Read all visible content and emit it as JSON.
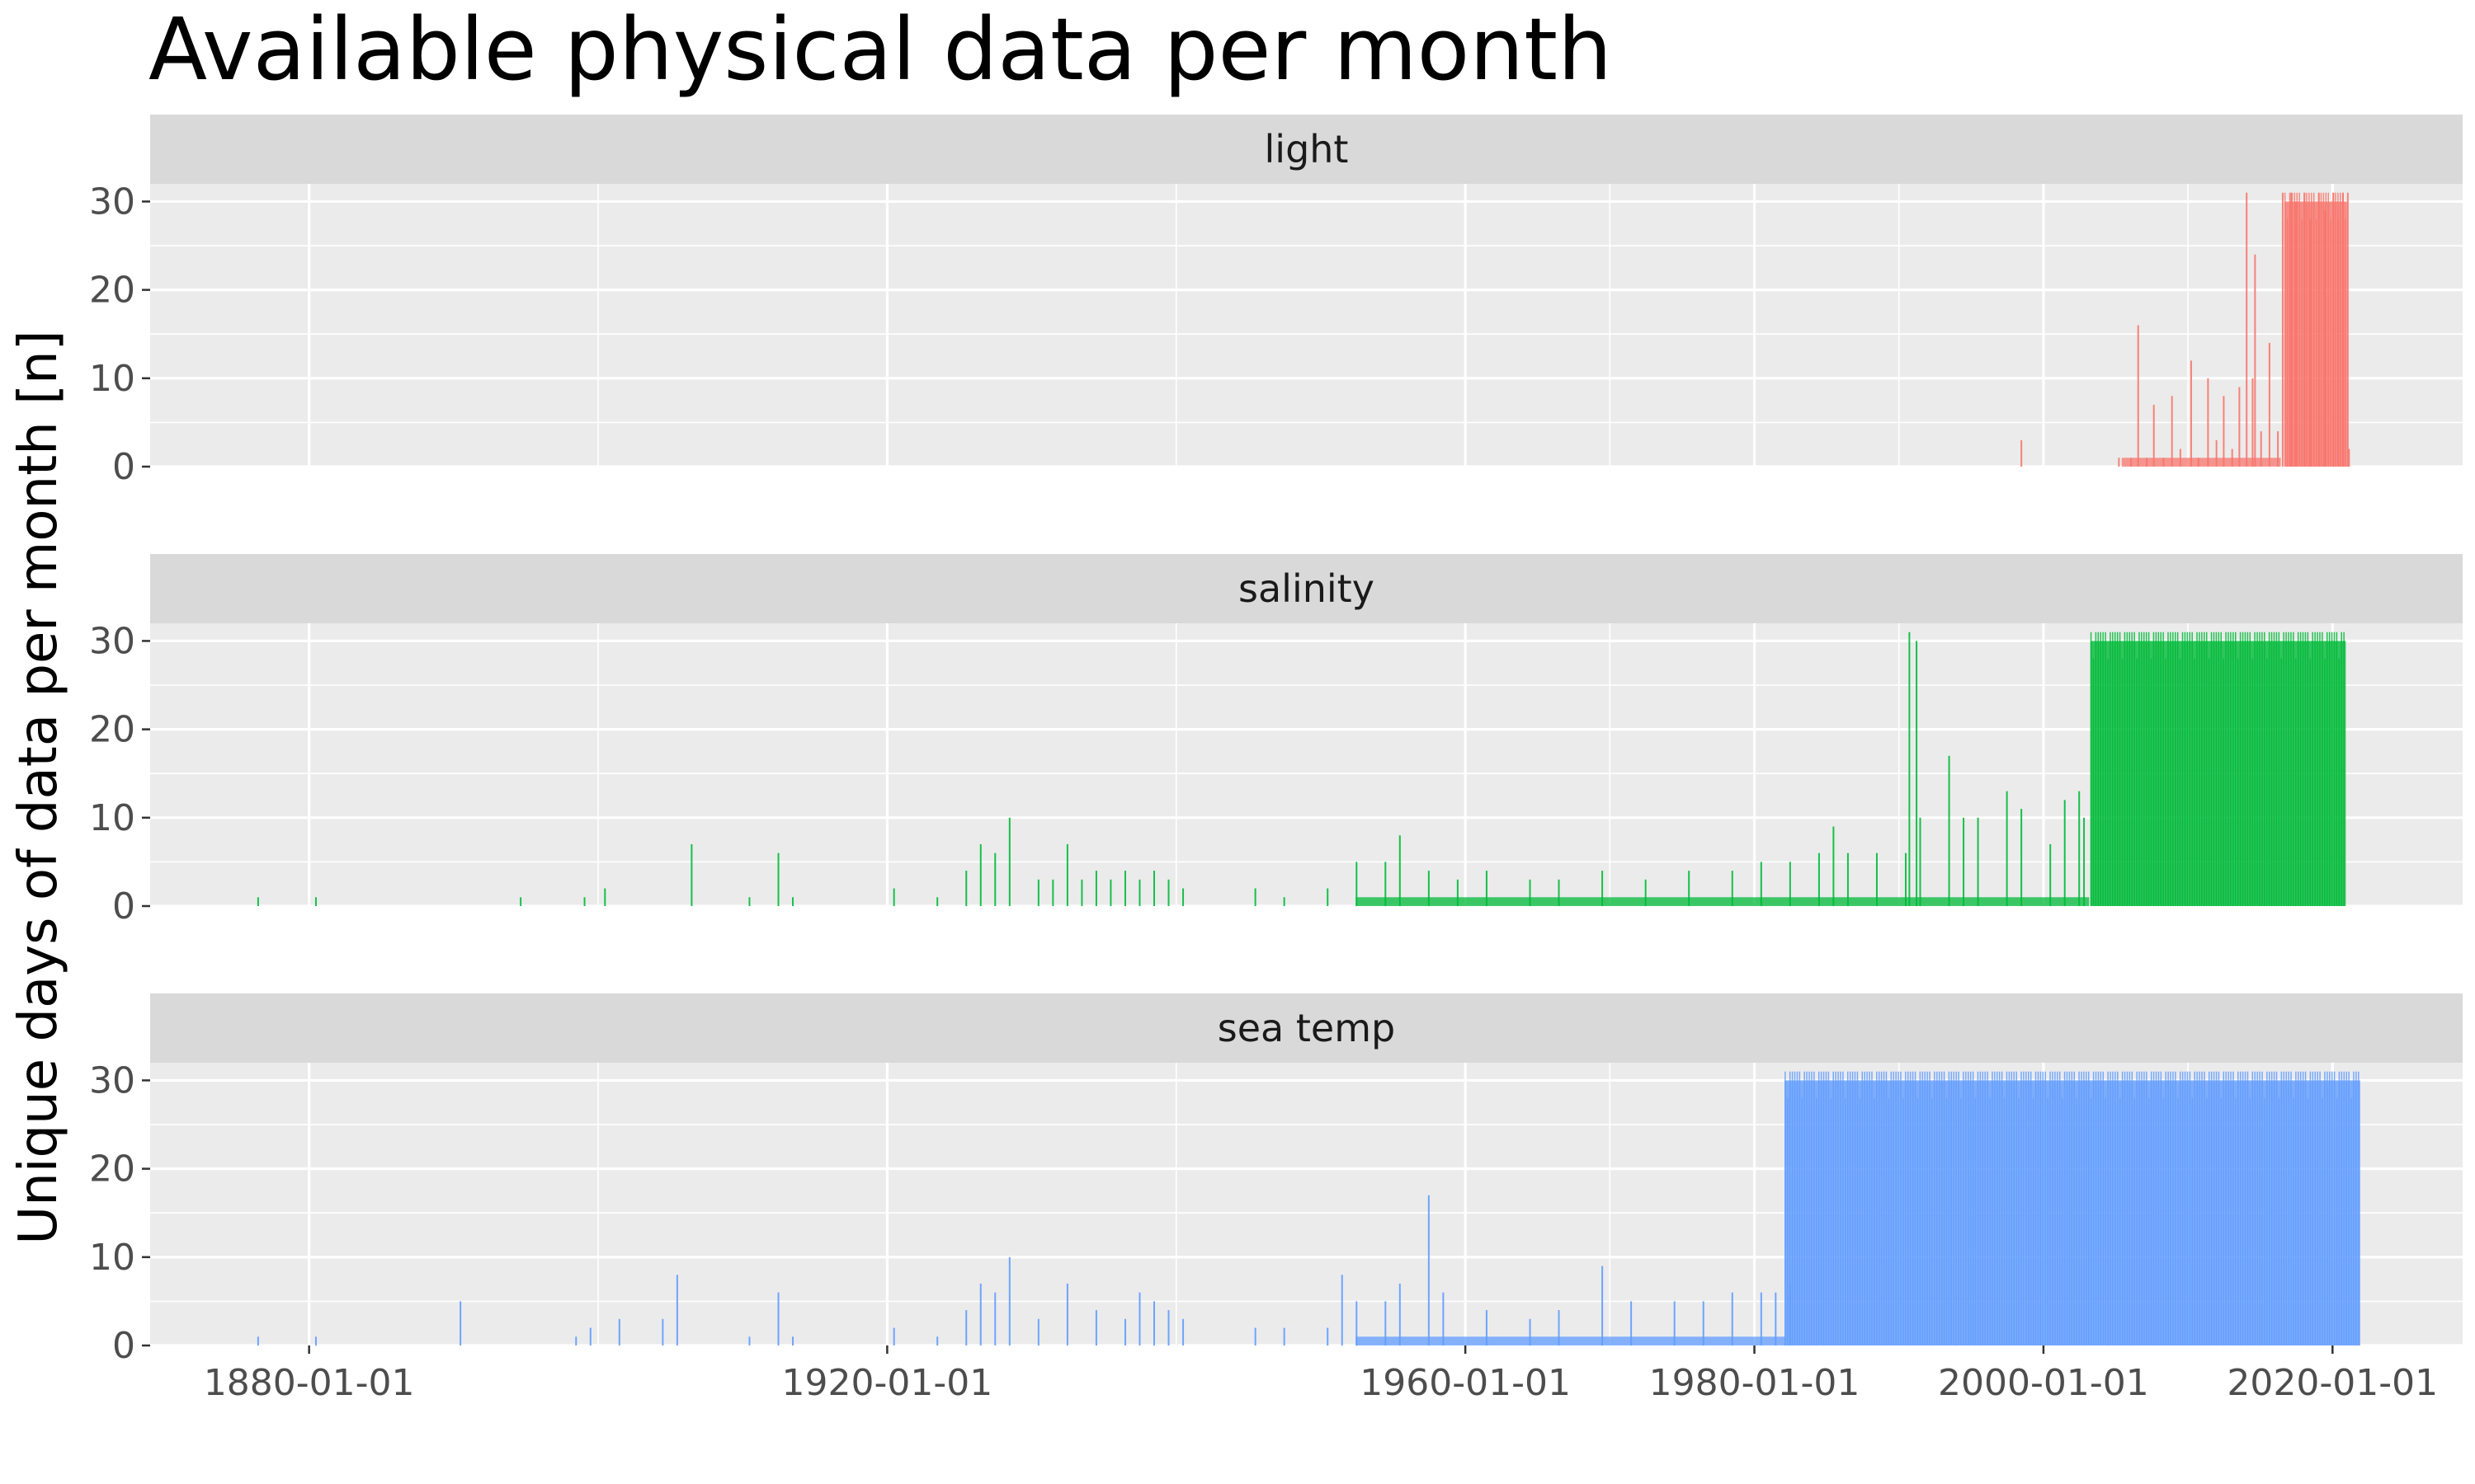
{
  "chart_data": {
    "type": "bar",
    "title": "Available physical data per month",
    "xlabel": "",
    "ylabel": "Unique days of data per month [n]",
    "x_range": [
      "1869-01-01",
      "2029-01-01"
    ],
    "ylim": [
      0,
      32
    ],
    "x_ticks": [
      "1880-01-01",
      "1920-01-01",
      "1960-01-01",
      "1980-01-01",
      "2000-01-01",
      "2020-01-01"
    ],
    "y_ticks": [
      0,
      10,
      20,
      30
    ],
    "grid": true,
    "facets": [
      {
        "name": "light",
        "color": "#F8766D",
        "bars": [
          [
            "1998-06-01",
            3
          ],
          [
            "2005-03-01",
            1
          ],
          [
            "2006-01-01",
            1
          ],
          [
            "2006-07-01",
            16
          ],
          [
            "2007-02-01",
            1
          ],
          [
            "2007-08-01",
            7
          ],
          [
            "2008-04-01",
            1
          ],
          [
            "2008-11-01",
            8
          ],
          [
            "2009-06-01",
            2
          ],
          [
            "2010-03-01",
            12
          ],
          [
            "2010-09-01",
            1
          ],
          [
            "2011-05-01",
            10
          ],
          [
            "2011-12-01",
            3
          ],
          [
            "2012-06-01",
            8
          ],
          [
            "2013-01-01",
            2
          ],
          [
            "2013-07-01",
            9
          ],
          [
            "2014-01-01",
            31
          ],
          [
            "2014-06-01",
            10
          ],
          [
            "2014-08-01",
            24
          ],
          [
            "2015-01-01",
            4
          ],
          [
            "2015-08-01",
            14
          ],
          [
            "2016-03-01",
            4
          ],
          [
            "2016-07-01",
            31
          ],
          [
            "2017-02-01",
            31
          ],
          [
            "2017-06-01",
            30
          ],
          [
            "2018-01-01",
            31
          ],
          [
            "2018-06-01",
            28
          ],
          [
            "2019-01-01",
            31
          ],
          [
            "2019-06-01",
            29
          ],
          [
            "2020-01-01",
            31
          ],
          [
            "2020-05-01",
            28
          ],
          [
            "2020-09-01",
            31
          ],
          [
            "2021-01-01",
            31
          ],
          [
            "2021-02-01",
            2
          ]
        ],
        "fill_span": {
          "start": "2005-06-01",
          "end": "2016-06-01",
          "value": 1
        },
        "dense_span": {
          "start": "2016-09-01",
          "end": "2021-01-01",
          "value": 30
        }
      },
      {
        "name": "salinity",
        "color": "#00BA38",
        "bars": [
          [
            "1876-06-01",
            1
          ],
          [
            "1880-06-01",
            1
          ],
          [
            "1894-08-01",
            1
          ],
          [
            "1899-01-01",
            1
          ],
          [
            "1900-06-01",
            2
          ],
          [
            "1906-06-01",
            7
          ],
          [
            "1910-06-01",
            1
          ],
          [
            "1912-06-01",
            6
          ],
          [
            "1913-06-01",
            1
          ],
          [
            "1920-06-01",
            2
          ],
          [
            "1923-06-01",
            1
          ],
          [
            "1925-06-01",
            4
          ],
          [
            "1926-06-01",
            7
          ],
          [
            "1927-06-01",
            6
          ],
          [
            "1928-06-01",
            10
          ],
          [
            "1930-06-01",
            3
          ],
          [
            "1931-06-01",
            3
          ],
          [
            "1932-06-01",
            7
          ],
          [
            "1933-06-01",
            3
          ],
          [
            "1934-06-01",
            4
          ],
          [
            "1935-06-01",
            3
          ],
          [
            "1936-06-01",
            4
          ],
          [
            "1937-06-01",
            3
          ],
          [
            "1938-06-01",
            4
          ],
          [
            "1939-06-01",
            3
          ],
          [
            "1940-06-01",
            2
          ],
          [
            "1945-06-01",
            2
          ],
          [
            "1947-06-01",
            1
          ],
          [
            "1950-06-01",
            2
          ],
          [
            "1952-06-01",
            5
          ],
          [
            "1954-06-01",
            5
          ],
          [
            "1955-06-01",
            8
          ],
          [
            "1957-06-01",
            4
          ],
          [
            "1959-06-01",
            3
          ],
          [
            "1961-06-01",
            4
          ],
          [
            "1964-06-01",
            3
          ],
          [
            "1966-06-01",
            3
          ],
          [
            "1969-06-01",
            4
          ],
          [
            "1972-06-01",
            3
          ],
          [
            "1975-06-01",
            4
          ],
          [
            "1978-06-01",
            4
          ],
          [
            "1980-06-01",
            5
          ],
          [
            "1982-06-01",
            5
          ],
          [
            "1984-06-01",
            6
          ],
          [
            "1985-06-01",
            9
          ],
          [
            "1986-06-01",
            6
          ],
          [
            "1988-06-01",
            6
          ],
          [
            "1990-06-01",
            6
          ],
          [
            "1990-09-01",
            31
          ],
          [
            "1991-03-01",
            30
          ],
          [
            "1991-06-01",
            10
          ],
          [
            "1993-06-01",
            17
          ],
          [
            "1994-06-01",
            10
          ],
          [
            "1995-06-01",
            10
          ],
          [
            "1997-06-01",
            13
          ],
          [
            "1998-06-01",
            11
          ],
          [
            "2000-06-01",
            7
          ],
          [
            "2001-06-01",
            12
          ],
          [
            "2002-06-01",
            13
          ],
          [
            "2002-10-01",
            10
          ]
        ],
        "fill_span": {
          "start": "1952-06-01",
          "end": "2003-03-01",
          "value": 1
        },
        "dense_span": {
          "start": "2003-04-01",
          "end": "2020-12-01",
          "value": 30
        }
      },
      {
        "name": "sea temp",
        "color": "#619CFF",
        "bars": [
          [
            "1876-06-01",
            1
          ],
          [
            "1880-06-01",
            1
          ],
          [
            "1890-06-01",
            5
          ],
          [
            "1898-06-01",
            1
          ],
          [
            "1899-06-01",
            2
          ],
          [
            "1901-06-01",
            3
          ],
          [
            "1904-06-01",
            3
          ],
          [
            "1905-06-01",
            8
          ],
          [
            "1910-06-01",
            1
          ],
          [
            "1912-06-01",
            6
          ],
          [
            "1913-06-01",
            1
          ],
          [
            "1920-06-01",
            2
          ],
          [
            "1923-06-01",
            1
          ],
          [
            "1925-06-01",
            4
          ],
          [
            "1926-06-01",
            7
          ],
          [
            "1927-06-01",
            6
          ],
          [
            "1928-06-01",
            10
          ],
          [
            "1930-06-01",
            3
          ],
          [
            "1932-06-01",
            7
          ],
          [
            "1934-06-01",
            4
          ],
          [
            "1936-06-01",
            3
          ],
          [
            "1937-06-01",
            6
          ],
          [
            "1938-06-01",
            5
          ],
          [
            "1939-06-01",
            4
          ],
          [
            "1940-06-01",
            3
          ],
          [
            "1945-06-01",
            2
          ],
          [
            "1947-06-01",
            2
          ],
          [
            "1950-06-01",
            2
          ],
          [
            "1951-06-01",
            8
          ],
          [
            "1952-06-01",
            5
          ],
          [
            "1954-06-01",
            5
          ],
          [
            "1955-06-01",
            7
          ],
          [
            "1957-06-01",
            17
          ],
          [
            "1958-06-01",
            6
          ],
          [
            "1961-06-01",
            4
          ],
          [
            "1964-06-01",
            3
          ],
          [
            "1966-06-01",
            4
          ],
          [
            "1969-06-01",
            9
          ],
          [
            "1971-06-01",
            5
          ],
          [
            "1974-06-01",
            5
          ],
          [
            "1976-06-01",
            5
          ],
          [
            "1978-06-01",
            6
          ],
          [
            "1980-06-01",
            6
          ],
          [
            "1981-06-01",
            6
          ],
          [
            "1982-06-01",
            7
          ]
        ],
        "fill_span": {
          "start": "1952-06-01",
          "end": "1982-03-01",
          "value": 1
        },
        "dense_span": {
          "start": "1982-02-01",
          "end": "2021-12-01",
          "value": 30
        }
      }
    ]
  }
}
